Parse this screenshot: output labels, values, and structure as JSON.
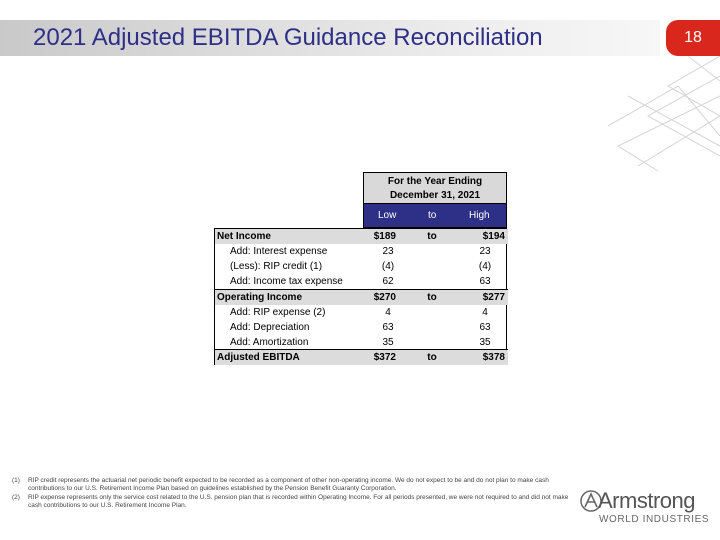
{
  "header": {
    "title": "2021 Adjusted EBITDA Guidance Reconciliation",
    "page_number": "18",
    "accent_color": "#d9271e",
    "title_color": "#2e2f87"
  },
  "table": {
    "group_header_line1": "For the Year Ending",
    "group_header_line2": "December 31, 2021",
    "col_low": "Low",
    "col_to": "to",
    "col_high": "High",
    "rows": [
      {
        "label": "Net Income",
        "low": "$189",
        "to": "to",
        "high": "$194"
      },
      {
        "label": "Add: Interest expense",
        "low": "23",
        "to": "",
        "high": "23"
      },
      {
        "label": "(Less): RIP credit (1)",
        "low": "(4)",
        "to": "",
        "high": "(4)"
      },
      {
        "label": "Add: Income tax expense",
        "low": "62",
        "to": "",
        "high": "63"
      },
      {
        "label": "Operating Income",
        "low": "$270",
        "to": "to",
        "high": "$277"
      },
      {
        "label": "Add: RIP expense (2)",
        "low": "4",
        "to": "",
        "high": "4"
      },
      {
        "label": "Add: Depreciation",
        "low": "63",
        "to": "",
        "high": "63"
      },
      {
        "label": "Add: Amortization",
        "low": "35",
        "to": "",
        "high": "35"
      },
      {
        "label": "Adjusted EBITDA",
        "low": "$372",
        "to": "to",
        "high": "$378"
      }
    ]
  },
  "footnotes": [
    {
      "num": "(1)",
      "text": "RIP credit represents the actuarial net periodic benefit expected to be recorded as a component of other non-operating income. We do not expect to be and do not plan to make cash contributions to our U.S. Retirement Income Plan based on guidelines established by the Pension Benefit Guaranty Corporation."
    },
    {
      "num": "(2)",
      "text": "RIP expense represents only the service cost related to the U.S. pension plan that is recorded within Operating Income. For all periods presented, we were not required to and did not make cash contributions to our U.S. Retirement Income Plan."
    }
  ],
  "logo": {
    "word": "Armstrong",
    "sub": "WORLD INDUSTRIES"
  }
}
